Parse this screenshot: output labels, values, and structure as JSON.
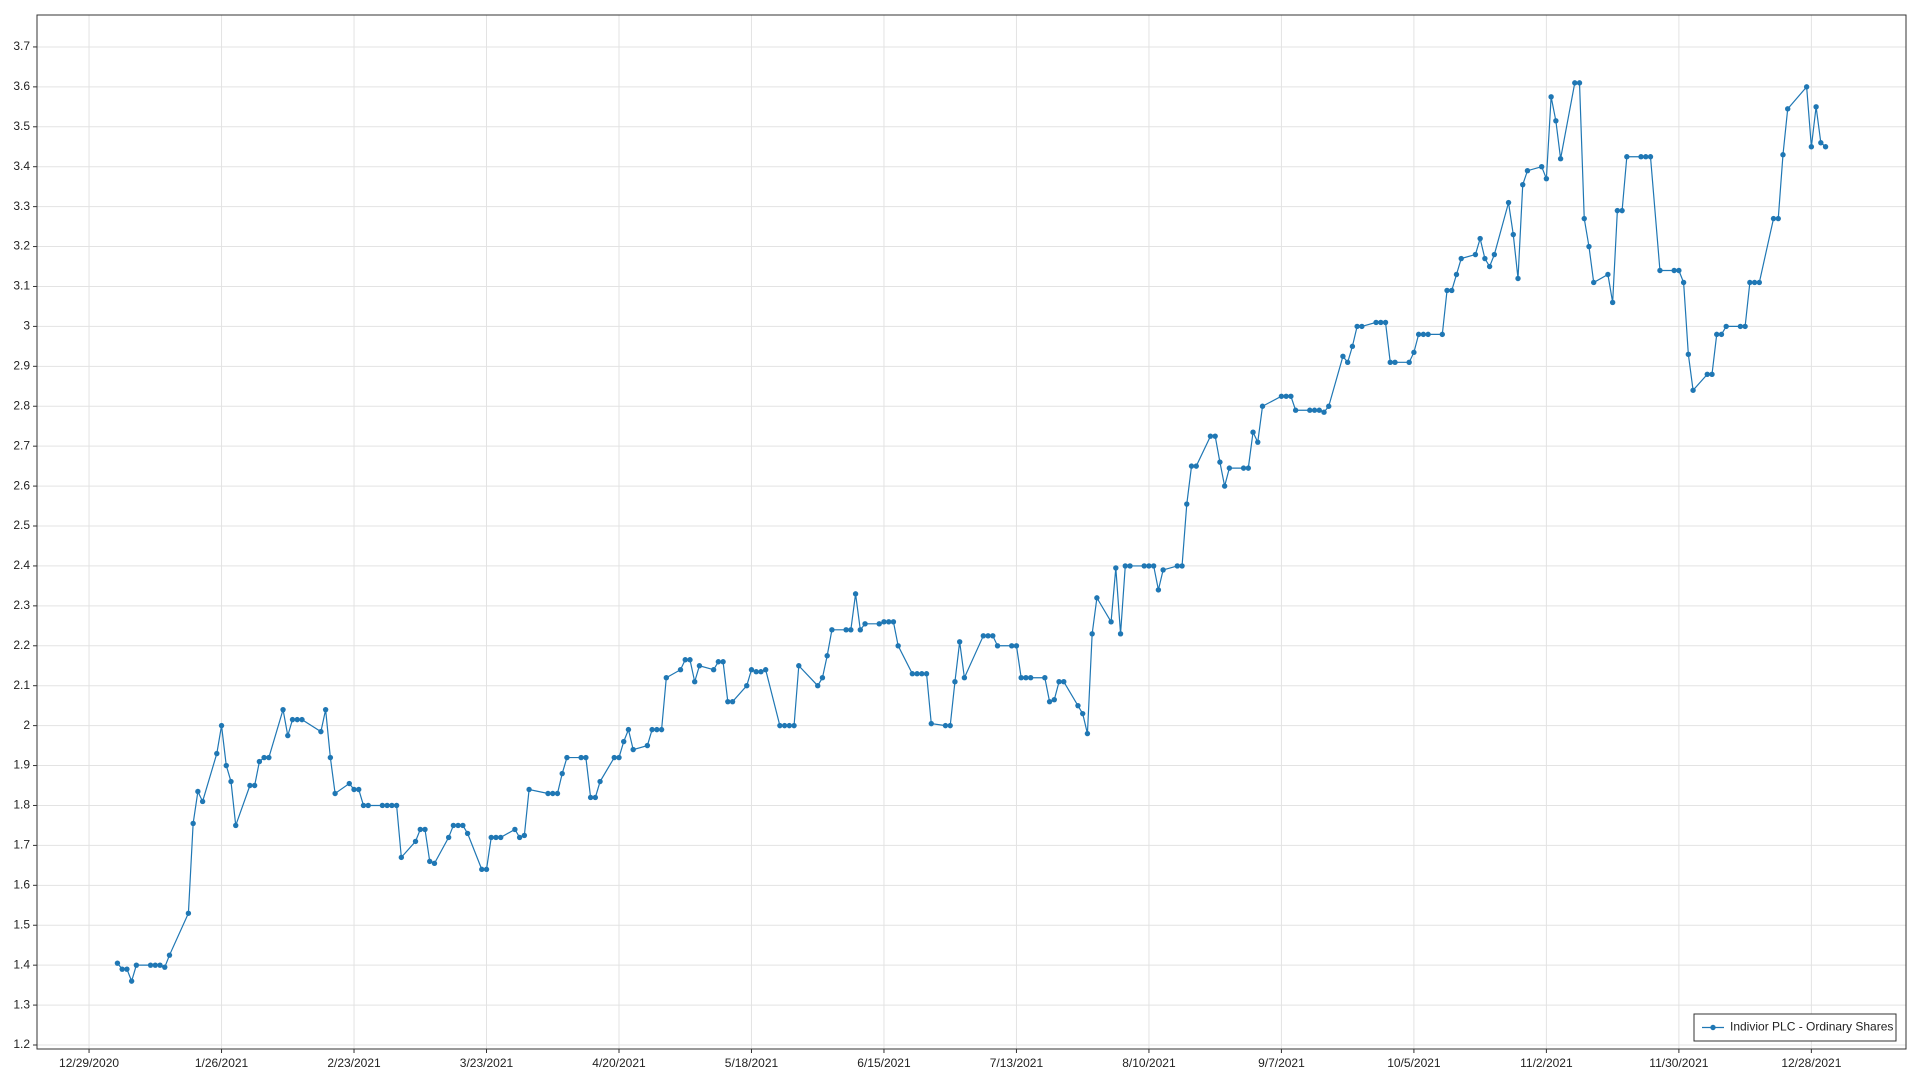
{
  "chart_data": {
    "type": "line",
    "x": [
      "1/4/2021",
      "1/5/2021",
      "1/6/2021",
      "1/7/2021",
      "1/8/2021",
      "1/11/2021",
      "1/12/2021",
      "1/13/2021",
      "1/14/2021",
      "1/15/2021",
      "1/19/2021",
      "1/20/2021",
      "1/21/2021",
      "1/22/2021",
      "1/25/2021",
      "1/26/2021",
      "1/27/2021",
      "1/28/2021",
      "1/29/2021",
      "2/1/2021",
      "2/2/2021",
      "2/3/2021",
      "2/4/2021",
      "2/5/2021",
      "2/8/2021",
      "2/9/2021",
      "2/10/2021",
      "2/11/2021",
      "2/12/2021",
      "2/16/2021",
      "2/17/2021",
      "2/18/2021",
      "2/19/2021",
      "2/22/2021",
      "2/23/2021",
      "2/24/2021",
      "2/25/2021",
      "2/26/2021",
      "3/1/2021",
      "3/2/2021",
      "3/3/2021",
      "3/4/2021",
      "3/5/2021",
      "3/8/2021",
      "3/9/2021",
      "3/10/2021",
      "3/11/2021",
      "3/12/2021",
      "3/15/2021",
      "3/16/2021",
      "3/17/2021",
      "3/18/2021",
      "3/19/2021",
      "3/22/2021",
      "3/23/2021",
      "3/24/2021",
      "3/25/2021",
      "3/26/2021",
      "3/29/2021",
      "3/30/2021",
      "3/31/2021",
      "4/1/2021",
      "4/5/2021",
      "4/6/2021",
      "4/7/2021",
      "4/8/2021",
      "4/9/2021",
      "4/12/2021",
      "4/13/2021",
      "4/14/2021",
      "4/15/2021",
      "4/16/2021",
      "4/19/2021",
      "4/20/2021",
      "4/21/2021",
      "4/22/2021",
      "4/23/2021",
      "4/26/2021",
      "4/27/2021",
      "4/28/2021",
      "4/29/2021",
      "4/30/2021",
      "5/3/2021",
      "5/4/2021",
      "5/5/2021",
      "5/6/2021",
      "5/7/2021",
      "5/10/2021",
      "5/11/2021",
      "5/12/2021",
      "5/13/2021",
      "5/14/2021",
      "5/17/2021",
      "5/18/2021",
      "5/19/2021",
      "5/20/2021",
      "5/21/2021",
      "5/24/2021",
      "5/25/2021",
      "5/26/2021",
      "5/27/2021",
      "5/28/2021",
      "6/1/2021",
      "6/2/2021",
      "6/3/2021",
      "6/4/2021",
      "6/7/2021",
      "6/8/2021",
      "6/9/2021",
      "6/10/2021",
      "6/11/2021",
      "6/14/2021",
      "6/15/2021",
      "6/16/2021",
      "6/17/2021",
      "6/18/2021",
      "6/21/2021",
      "6/22/2021",
      "6/23/2021",
      "6/24/2021",
      "6/25/2021",
      "6/28/2021",
      "6/29/2021",
      "6/30/2021",
      "7/1/2021",
      "7/2/2021",
      "7/6/2021",
      "7/7/2021",
      "7/8/2021",
      "7/9/2021",
      "7/12/2021",
      "7/13/2021",
      "7/14/2021",
      "7/15/2021",
      "7/16/2021",
      "7/19/2021",
      "7/20/2021",
      "7/21/2021",
      "7/22/2021",
      "7/23/2021",
      "7/26/2021",
      "7/27/2021",
      "7/28/2021",
      "7/29/2021",
      "7/30/2021",
      "8/2/2021",
      "8/3/2021",
      "8/4/2021",
      "8/5/2021",
      "8/6/2021",
      "8/9/2021",
      "8/10/2021",
      "8/11/2021",
      "8/12/2021",
      "8/13/2021",
      "8/16/2021",
      "8/17/2021",
      "8/18/2021",
      "8/19/2021",
      "8/20/2021",
      "8/23/2021",
      "8/24/2021",
      "8/25/2021",
      "8/26/2021",
      "8/27/2021",
      "8/30/2021",
      "8/31/2021",
      "9/1/2021",
      "9/2/2021",
      "9/3/2021",
      "9/7/2021",
      "9/8/2021",
      "9/9/2021",
      "9/10/2021",
      "9/13/2021",
      "9/14/2021",
      "9/15/2021",
      "9/16/2021",
      "9/17/2021",
      "9/20/2021",
      "9/21/2021",
      "9/22/2021",
      "9/23/2021",
      "9/24/2021",
      "9/27/2021",
      "9/28/2021",
      "9/29/2021",
      "9/30/2021",
      "10/1/2021",
      "10/4/2021",
      "10/5/2021",
      "10/6/2021",
      "10/7/2021",
      "10/8/2021",
      "10/11/2021",
      "10/12/2021",
      "10/13/2021",
      "10/14/2021",
      "10/15/2021",
      "10/18/2021",
      "10/19/2021",
      "10/20/2021",
      "10/21/2021",
      "10/22/2021",
      "10/25/2021",
      "10/26/2021",
      "10/27/2021",
      "10/28/2021",
      "10/29/2021",
      "11/1/2021",
      "11/2/2021",
      "11/3/2021",
      "11/4/2021",
      "11/5/2021",
      "11/8/2021",
      "11/9/2021",
      "11/10/2021",
      "11/11/2021",
      "11/12/2021",
      "11/15/2021",
      "11/16/2021",
      "11/17/2021",
      "11/18/2021",
      "11/19/2021",
      "11/22/2021",
      "11/23/2021",
      "11/24/2021",
      "11/26/2021",
      "11/29/2021",
      "11/30/2021",
      "12/1/2021",
      "12/2/2021",
      "12/3/2021",
      "12/6/2021",
      "12/7/2021",
      "12/8/2021",
      "12/9/2021",
      "12/10/2021",
      "12/13/2021",
      "12/14/2021",
      "12/15/2021",
      "12/16/2021",
      "12/17/2021",
      "12/20/2021",
      "12/21/2021",
      "12/22/2021",
      "12/23/2021",
      "12/27/2021",
      "12/28/2021",
      "12/29/2021",
      "12/30/2021",
      "12/31/2021"
    ],
    "series": [
      {
        "name": "Indivior PLC - Ordinary Shares",
        "color": "#1f77b4",
        "values": [
          1.405,
          1.39,
          1.39,
          1.36,
          1.4,
          1.4,
          1.4,
          1.4,
          1.395,
          1.425,
          1.53,
          1.755,
          1.835,
          1.81,
          1.93,
          2.0,
          1.9,
          1.86,
          1.75,
          1.85,
          1.85,
          1.91,
          1.92,
          1.92,
          2.04,
          1.975,
          2.015,
          2.015,
          2.015,
          1.985,
          2.04,
          1.92,
          1.83,
          1.855,
          1.84,
          1.84,
          1.8,
          1.8,
          1.8,
          1.8,
          1.8,
          1.8,
          1.67,
          1.71,
          1.74,
          1.74,
          1.66,
          1.655,
          1.72,
          1.75,
          1.75,
          1.75,
          1.73,
          1.64,
          1.64,
          1.72,
          1.72,
          1.72,
          1.74,
          1.72,
          1.725,
          1.84,
          1.83,
          1.83,
          1.83,
          1.88,
          1.92,
          1.92,
          1.92,
          1.82,
          1.82,
          1.86,
          1.92,
          1.92,
          1.96,
          1.99,
          1.94,
          1.95,
          1.99,
          1.99,
          1.99,
          2.12,
          2.14,
          2.165,
          2.165,
          2.11,
          2.15,
          2.14,
          2.16,
          2.16,
          2.06,
          2.06,
          2.1,
          2.14,
          2.135,
          2.135,
          2.14,
          2.0,
          2.0,
          2.0,
          2.0,
          2.15,
          2.1,
          2.12,
          2.175,
          2.24,
          2.24,
          2.24,
          2.33,
          2.24,
          2.255,
          2.255,
          2.26,
          2.26,
          2.26,
          2.2,
          2.13,
          2.13,
          2.13,
          2.13,
          2.005,
          2.0,
          2.0,
          2.11,
          2.21,
          2.12,
          2.225,
          2.225,
          2.225,
          2.2,
          2.2,
          2.2,
          2.12,
          2.12,
          2.12,
          2.12,
          2.06,
          2.065,
          2.11,
          2.11,
          2.05,
          2.03,
          1.98,
          2.23,
          2.32,
          2.26,
          2.395,
          2.23,
          2.4,
          2.4,
          2.4,
          2.4,
          2.4,
          2.34,
          2.39,
          2.4,
          2.4,
          2.555,
          2.65,
          2.65,
          2.725,
          2.725,
          2.66,
          2.6,
          2.645,
          2.645,
          2.645,
          2.735,
          2.71,
          2.8,
          2.825,
          2.825,
          2.825,
          2.79,
          2.79,
          2.79,
          2.79,
          2.785,
          2.8,
          2.925,
          2.91,
          2.95,
          3.0,
          3.0,
          3.01,
          3.01,
          3.01,
          2.91,
          2.91,
          2.91,
          2.935,
          2.98,
          2.98,
          2.98,
          2.98,
          3.09,
          3.09,
          3.13,
          3.17,
          3.18,
          3.22,
          3.17,
          3.15,
          3.18,
          3.31,
          3.23,
          3.12,
          3.355,
          3.39,
          3.4,
          3.37,
          3.575,
          3.515,
          3.42,
          3.61,
          3.61,
          3.27,
          3.2,
          3.11,
          3.13,
          3.06,
          3.29,
          3.29,
          3.425,
          3.425,
          3.425,
          3.425,
          3.14,
          3.14,
          3.14,
          3.11,
          2.93,
          2.84,
          2.88,
          2.88,
          2.98,
          2.98,
          3.0,
          3.0,
          3.0,
          3.11,
          3.11,
          3.11,
          3.27,
          3.27,
          3.43,
          3.545,
          3.6,
          3.45,
          3.55,
          3.46,
          3.45
        ]
      }
    ],
    "xlim": [
      "12/18/2020",
      "1/17/2022"
    ],
    "xticks": [
      "12/29/2020",
      "1/26/2021",
      "2/23/2021",
      "3/23/2021",
      "4/20/2021",
      "5/18/2021",
      "6/15/2021",
      "7/13/2021",
      "8/10/2021",
      "9/7/2021",
      "10/5/2021",
      "11/2/2021",
      "11/30/2021",
      "12/28/2021"
    ],
    "ylim": [
      1.19,
      3.78
    ],
    "yticks": [
      1.2,
      1.3,
      1.4,
      1.5,
      1.6,
      1.7,
      1.8,
      1.9,
      2,
      2.1,
      2.2,
      2.3,
      2.4,
      2.5,
      2.6,
      2.7,
      2.8,
      2.9,
      3,
      3.1,
      3.2,
      3.3,
      3.4,
      3.5,
      3.6,
      3.7
    ],
    "grid": true,
    "legend": "lower right"
  }
}
